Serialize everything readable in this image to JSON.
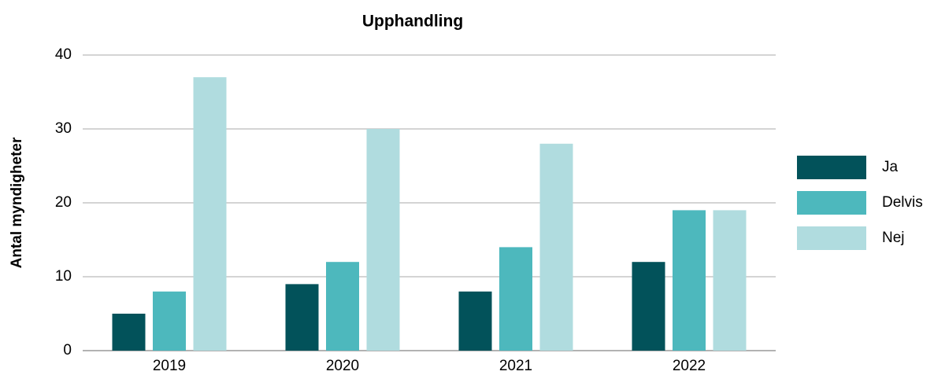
{
  "chart_data": {
    "type": "bar",
    "title": "Upphandling",
    "y_label": "Antal myndigheter",
    "categories": [
      "2019",
      "2020",
      "2021",
      "2022"
    ],
    "series": [
      {
        "name": "Ja",
        "color": "#02525a",
        "values": [
          5,
          9,
          8,
          12
        ]
      },
      {
        "name": "Delvis",
        "color": "#4db8bd",
        "values": [
          8,
          12,
          14,
          19
        ]
      },
      {
        "name": "Nej",
        "color": "#b0dcdf",
        "values": [
          37,
          30,
          28,
          19
        ]
      }
    ],
    "ylim": [
      0,
      40
    ],
    "yticks": [
      0,
      10,
      20,
      30,
      40
    ],
    "grid": true,
    "legend": "right"
  }
}
